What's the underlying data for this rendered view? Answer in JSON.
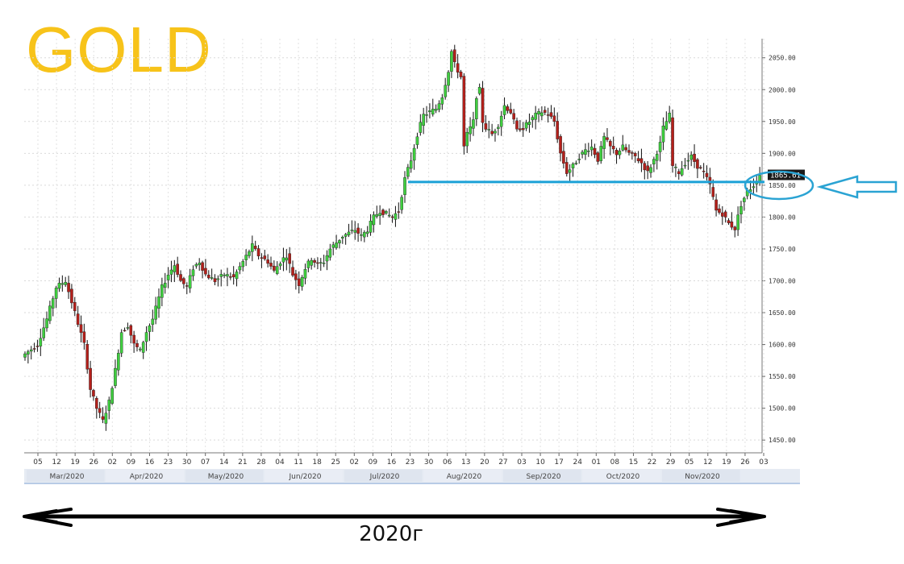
{
  "title": "GOLD",
  "caption": "2020г",
  "colors": {
    "title": "#f7c31a",
    "up_candle": "#3fcf3f",
    "down_candle": "#b5201b",
    "wick": "#111111",
    "support_line": "#1ba1d6",
    "annotation": "#2aa3d3",
    "price_tag_bg": "#1a1a1a",
    "month_band": "#e6ebf3"
  },
  "chart_data": {
    "type": "candlestick",
    "title": "GOLD",
    "ylim": [
      1430,
      2080
    ],
    "y_ticks": [
      "1450.00",
      "1500.00",
      "1550.00",
      "1600.00",
      "1650.00",
      "1700.00",
      "1750.00",
      "1800.00",
      "1850.00",
      "1900.00",
      "1950.00",
      "2000.00",
      "2050.00"
    ],
    "y_tick_values": [
      1450,
      1500,
      1550,
      1600,
      1650,
      1700,
      1750,
      1800,
      1850,
      1900,
      1950,
      2000,
      2050
    ],
    "x_day_ticks": [
      "05",
      "12",
      "19",
      "26",
      "02",
      "09",
      "16",
      "23",
      "30",
      "07",
      "14",
      "21",
      "28",
      "04",
      "11",
      "18",
      "25",
      "02",
      "09",
      "16",
      "23",
      "30",
      "06",
      "13",
      "20",
      "27",
      "03",
      "10",
      "17",
      "24",
      "01",
      "08",
      "15",
      "22",
      "29",
      "05",
      "12",
      "19",
      "26",
      "03"
    ],
    "x_month_labels": [
      "Mar/2020",
      "Apr/2020",
      "May/2020",
      "Jun/2020",
      "Jul/2020",
      "Aug/2020",
      "Sep/2020",
      "Oct/2020",
      "Nov/2020"
    ],
    "last_price": "1865.61",
    "support_level": 1855,
    "grid": true,
    "close_path": [
      [
        0,
        1585
      ],
      [
        4,
        1600
      ],
      [
        7,
        1640
      ],
      [
        10,
        1690
      ],
      [
        13,
        1700
      ],
      [
        16,
        1650
      ],
      [
        19,
        1600
      ],
      [
        21,
        1530
      ],
      [
        23,
        1500
      ],
      [
        25,
        1480
      ],
      [
        27,
        1510
      ],
      [
        29,
        1560
      ],
      [
        31,
        1620
      ],
      [
        33,
        1630
      ],
      [
        35,
        1600
      ],
      [
        37,
        1590
      ],
      [
        39,
        1620
      ],
      [
        41,
        1640
      ],
      [
        44,
        1690
      ],
      [
        46,
        1710
      ],
      [
        48,
        1725
      ],
      [
        50,
        1700
      ],
      [
        52,
        1690
      ],
      [
        54,
        1720
      ],
      [
        56,
        1730
      ],
      [
        58,
        1710
      ],
      [
        61,
        1700
      ],
      [
        64,
        1710
      ],
      [
        67,
        1705
      ],
      [
        70,
        1730
      ],
      [
        73,
        1755
      ],
      [
        75,
        1740
      ],
      [
        78,
        1730
      ],
      [
        80,
        1715
      ],
      [
        82,
        1730
      ],
      [
        84,
        1740
      ],
      [
        86,
        1710
      ],
      [
        88,
        1695
      ],
      [
        90,
        1720
      ],
      [
        92,
        1735
      ],
      [
        94,
        1725
      ],
      [
        96,
        1730
      ],
      [
        98,
        1750
      ],
      [
        100,
        1760
      ],
      [
        102,
        1770
      ],
      [
        104,
        1775
      ],
      [
        106,
        1780
      ],
      [
        108,
        1770
      ],
      [
        110,
        1780
      ],
      [
        112,
        1800
      ],
      [
        114,
        1810
      ],
      [
        116,
        1805
      ],
      [
        118,
        1800
      ],
      [
        120,
        1810
      ],
      [
        122,
        1860
      ],
      [
        124,
        1890
      ],
      [
        126,
        1930
      ],
      [
        128,
        1960
      ],
      [
        130,
        1965
      ],
      [
        132,
        1970
      ],
      [
        134,
        1990
      ],
      [
        136,
        2030
      ],
      [
        137,
        2060
      ],
      [
        138,
        2040
      ],
      [
        140,
        2020
      ],
      [
        141,
        1910
      ],
      [
        142,
        1930
      ],
      [
        144,
        1950
      ],
      [
        145,
        1990
      ],
      [
        146,
        2000
      ],
      [
        147,
        1950
      ],
      [
        148,
        1940
      ],
      [
        150,
        1930
      ],
      [
        152,
        1945
      ],
      [
        154,
        1975
      ],
      [
        156,
        1965
      ],
      [
        158,
        1935
      ],
      [
        159,
        1940
      ],
      [
        160,
        1940
      ],
      [
        162,
        1950
      ],
      [
        164,
        1960
      ],
      [
        166,
        1965
      ],
      [
        168,
        1962
      ],
      [
        170,
        1950
      ],
      [
        172,
        1900
      ],
      [
        174,
        1870
      ],
      [
        176,
        1880
      ],
      [
        178,
        1895
      ],
      [
        180,
        1905
      ],
      [
        182,
        1910
      ],
      [
        184,
        1890
      ],
      [
        186,
        1925
      ],
      [
        188,
        1910
      ],
      [
        190,
        1900
      ],
      [
        192,
        1910
      ],
      [
        194,
        1900
      ],
      [
        196,
        1895
      ],
      [
        198,
        1885
      ],
      [
        200,
        1870
      ],
      [
        202,
        1890
      ],
      [
        204,
        1915
      ],
      [
        205,
        1940
      ],
      [
        207,
        1960
      ],
      [
        208,
        1880
      ],
      [
        210,
        1870
      ],
      [
        212,
        1885
      ],
      [
        214,
        1895
      ],
      [
        216,
        1880
      ],
      [
        218,
        1870
      ],
      [
        220,
        1850
      ],
      [
        222,
        1810
      ],
      [
        224,
        1805
      ],
      [
        226,
        1790
      ],
      [
        228,
        1782
      ],
      [
        230,
        1820
      ],
      [
        232,
        1840
      ],
      [
        234,
        1850
      ],
      [
        236,
        1865.61
      ]
    ]
  }
}
